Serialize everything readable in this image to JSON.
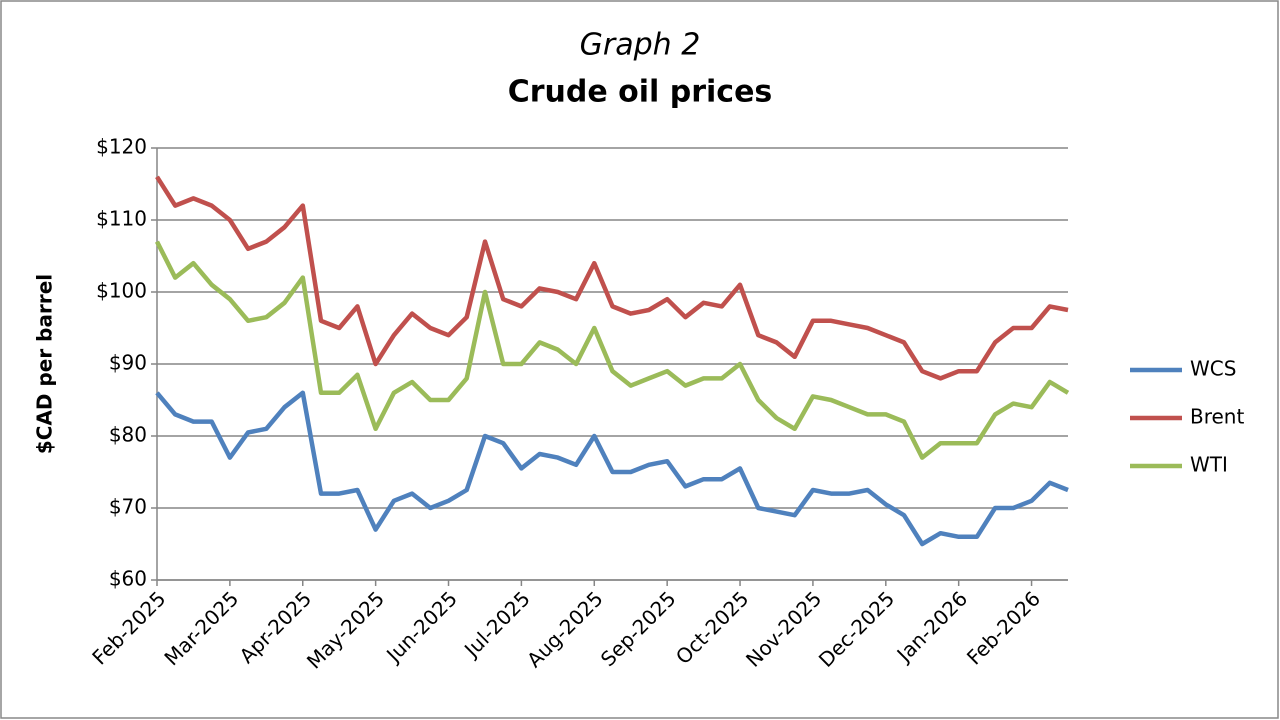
{
  "chart_data": {
    "type": "line",
    "title": "Graph 2",
    "subtitle": "Crude oil prices",
    "y_label": "$CAD per barrel",
    "categories": [
      "Feb-2025",
      null,
      null,
      null,
      "Mar-2025",
      null,
      null,
      null,
      "Apr-2025",
      null,
      null,
      null,
      "May-2025",
      null,
      null,
      null,
      "Jun-2025",
      null,
      null,
      null,
      "Jul-2025",
      null,
      null,
      null,
      "Aug-2025",
      null,
      null,
      null,
      "Sep-2025",
      null,
      null,
      null,
      "Oct-2025",
      null,
      null,
      null,
      "Nov-2025",
      null,
      null,
      null,
      "Dec-2025",
      null,
      null,
      null,
      "Jan-2026",
      null,
      null,
      null,
      "Feb-2026",
      null,
      null
    ],
    "series": [
      {
        "name": "WCS",
        "color": "#4f81bd",
        "values": [
          86,
          83,
          82,
          82,
          77,
          80.5,
          81,
          84,
          86,
          72,
          72,
          72.5,
          67,
          71,
          72,
          70,
          71,
          72.5,
          80,
          79,
          75.5,
          77.5,
          77,
          76,
          80,
          75,
          75,
          76,
          76.5,
          73,
          74,
          74,
          75.5,
          70,
          69.5,
          69,
          72.5,
          72,
          72,
          72.5,
          70.5,
          69,
          65,
          66.5,
          66,
          66,
          70,
          70,
          71,
          73.5,
          72.5
        ]
      },
      {
        "name": "Brent",
        "color": "#c0504d",
        "values": [
          116,
          112,
          113,
          112,
          110,
          106,
          107,
          109,
          112,
          96,
          95,
          98,
          90,
          94,
          97,
          95,
          94,
          96.5,
          107,
          99,
          98,
          100.5,
          100,
          99,
          104,
          98,
          97,
          97.5,
          99,
          96.5,
          98.5,
          98,
          101,
          94,
          93,
          91,
          96,
          96,
          95.5,
          95,
          94,
          93,
          89,
          88,
          89,
          89,
          93,
          95,
          95,
          98,
          97.5
        ]
      },
      {
        "name": "WTI",
        "color": "#9bbb59",
        "values": [
          107,
          102,
          104,
          101,
          99,
          96,
          96.5,
          98.5,
          102,
          86,
          86,
          88.5,
          81,
          86,
          87.5,
          85,
          85,
          88,
          100,
          90,
          90,
          93,
          92,
          90,
          95,
          89,
          87,
          88,
          89,
          87,
          88,
          88,
          90,
          85,
          82.5,
          81,
          85.5,
          85,
          84,
          83,
          83,
          82,
          77,
          79,
          79,
          79,
          83,
          84.5,
          84,
          87.5,
          86
        ]
      }
    ],
    "ylim": [
      60,
      120
    ],
    "yticks": [
      {
        "value": 60,
        "label": "$60"
      },
      {
        "value": 70,
        "label": "$70"
      },
      {
        "value": 80,
        "label": "$80"
      },
      {
        "value": 90,
        "label": "$90"
      },
      {
        "value": 100,
        "label": "$100"
      },
      {
        "value": 110,
        "label": "$110"
      },
      {
        "value": 120,
        "label": "$120"
      }
    ],
    "grid": true,
    "legend": "right"
  }
}
